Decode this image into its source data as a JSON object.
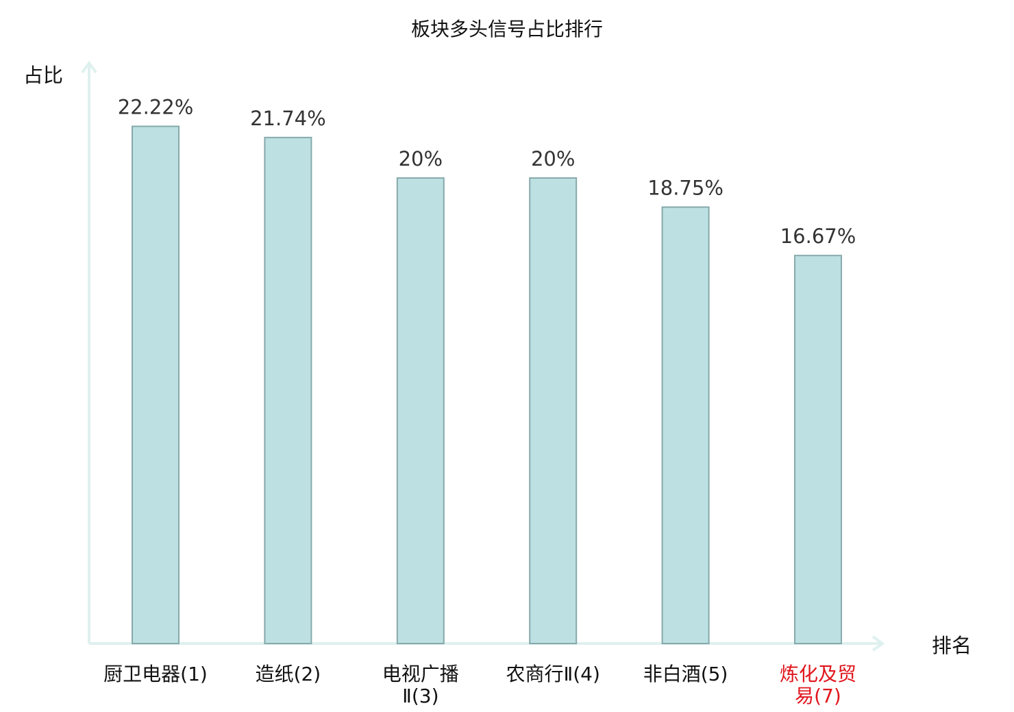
{
  "chart_data": {
    "type": "bar",
    "title": "板块多头信号占比排行",
    "ylabel": "占比",
    "xlabel": "排名",
    "ylim": [
      0,
      25
    ],
    "grid": false,
    "value_unit": "%",
    "categories": [
      {
        "lines": [
          "厨卫电器(1)"
        ],
        "highlight": false
      },
      {
        "lines": [
          "造纸(2)"
        ],
        "highlight": false
      },
      {
        "lines": [
          "电视广播",
          "Ⅱ(3)"
        ],
        "highlight": false
      },
      {
        "lines": [
          "农商行Ⅱ(4)"
        ],
        "highlight": false
      },
      {
        "lines": [
          "非白酒(5)"
        ],
        "highlight": false
      },
      {
        "lines": [
          "炼化及贸",
          "易(7)"
        ],
        "highlight": true
      }
    ],
    "values": [
      22.22,
      21.74,
      20,
      20,
      18.75,
      16.67
    ],
    "value_labels": [
      "22.22%",
      "21.74%",
      "20%",
      "20%",
      "18.75%",
      "16.67%"
    ],
    "colors": {
      "bar_fill": "#bde0e3",
      "bar_stroke": "#86a9ab",
      "axis": "#dff1ef",
      "text": "#111111",
      "value_text": "#333333",
      "highlight": "#e0141c"
    }
  }
}
